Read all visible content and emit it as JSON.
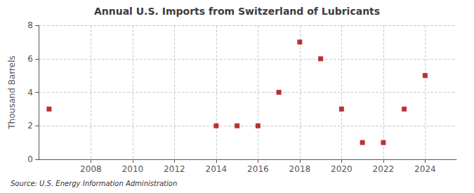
{
  "chart_data": {
    "type": "scatter",
    "title": "Annual U.S. Imports from Switzerland of Lubricants",
    "ylabel": "Thousand Barrels",
    "source": "Source: U.S. Energy Information Administration",
    "x": [
      2006,
      2014,
      2015,
      2016,
      2017,
      2018,
      2019,
      2020,
      2021,
      2022,
      2023,
      2024
    ],
    "values": [
      3,
      2,
      2,
      2,
      4,
      7,
      6,
      3,
      1,
      1,
      3,
      5
    ],
    "color": "#aa0000",
    "marker": "square",
    "xlim": [
      2005.5,
      2025.5
    ],
    "xticks": [
      2008,
      2010,
      2012,
      2014,
      2016,
      2018,
      2020,
      2022,
      2024
    ],
    "ylim": [
      0,
      8
    ],
    "yticks": [
      0,
      2,
      4,
      6,
      8
    ],
    "grid": true
  }
}
